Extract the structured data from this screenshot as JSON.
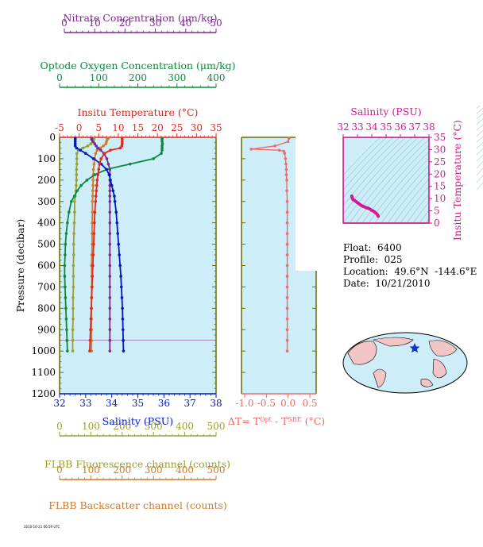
{
  "colors": {
    "nitrate": "#7a2a8a",
    "oxygen": "#0a8a3a",
    "temperature": "#e0281f",
    "salinity": "#0018c8",
    "fluorescence": "#9aa030",
    "backscatter": "#d27a2a",
    "delta": "#ef6a6a",
    "ts": "#d4198f",
    "plot_bg": "#cdeef8",
    "frame_olive": "#6b6b00"
  },
  "axes": {
    "nitrate": {
      "label": "Nitrate Concentration (μm/kg)",
      "ticks": [
        "0",
        "10",
        "20",
        "30",
        "40",
        "50"
      ],
      "range": [
        0,
        50
      ]
    },
    "oxygen": {
      "label": "Optode Oxygen Concentration (μm/kg)",
      "ticks": [
        "0",
        "100",
        "200",
        "300",
        "400"
      ],
      "range": [
        0,
        400
      ]
    },
    "temperature": {
      "label": "Insitu Temperature (°C)",
      "ticks": [
        "-5",
        "0",
        "5",
        "10",
        "15",
        "20",
        "25",
        "30",
        "35"
      ],
      "range": [
        -5,
        35
      ]
    },
    "salinity": {
      "label": "Salinity (PSU)",
      "ticks": [
        "32",
        "33",
        "34",
        "35",
        "36",
        "37",
        "38"
      ],
      "range": [
        32,
        38
      ]
    },
    "pressure": {
      "label": "Pressure (decibar)",
      "ticks": [
        "0",
        "100",
        "200",
        "300",
        "400",
        "500",
        "600",
        "700",
        "800",
        "900",
        "1000",
        "1100",
        "1200"
      ],
      "range": [
        0,
        1200
      ]
    },
    "delta": {
      "label_pre": "ΔT= T",
      "label_sup1": "Opt",
      "label_mid": " - T",
      "label_sup2": "SBE",
      "label_post": " (°C)",
      "ticks": [
        "-1.0",
        "-0.5",
        "0.0",
        "0.5"
      ],
      "range": [
        -1.0,
        0.5
      ]
    },
    "fluorescence": {
      "label": "FLBB Fluorescence channel (counts)",
      "ticks": [
        "0",
        "100",
        "200",
        "300",
        "400",
        "500"
      ],
      "range": [
        0,
        500
      ]
    },
    "backscatter": {
      "label": "FLBB Backscatter channel (counts)",
      "ticks": [
        "0",
        "100",
        "200",
        "300",
        "400",
        "500"
      ],
      "range": [
        0,
        500
      ]
    },
    "ts_salinity": {
      "label": "Salinity (PSU)",
      "ticks": [
        "32",
        "33",
        "34",
        "35",
        "36",
        "37",
        "38"
      ],
      "range": [
        32,
        38
      ]
    },
    "ts_temperature": {
      "label": "Insitu Temperature (°C)",
      "ticks": [
        "0",
        "5",
        "10",
        "15",
        "20",
        "25",
        "30",
        "35"
      ],
      "range": [
        0,
        35
      ]
    }
  },
  "info": {
    "float": "Float:  6400",
    "profile": "Profile:  025",
    "location": "Location:  49.6°N  -144.6°E",
    "date": "Date:  10/21/2010"
  },
  "footer": "2010-10-21 06:59 UTC",
  "chart_data": [
    {
      "type": "line",
      "panel": "main-profile",
      "pressure": [
        5,
        10,
        20,
        30,
        40,
        50,
        60,
        75,
        100,
        125,
        150,
        175,
        200,
        225,
        250,
        275,
        300,
        350,
        400,
        450,
        500,
        550,
        600,
        650,
        700,
        750,
        800,
        850,
        900,
        950,
        1000
      ],
      "series": [
        {
          "name": "Salinity (PSU)",
          "axis": "salinity",
          "values": [
            32.6,
            32.6,
            32.6,
            32.6,
            32.6,
            32.65,
            32.8,
            33.0,
            33.3,
            33.6,
            33.8,
            33.9,
            33.95,
            34.0,
            34.05,
            34.1,
            34.12,
            34.17,
            34.2,
            34.23,
            34.26,
            34.29,
            34.32,
            34.35,
            34.37,
            34.39,
            34.41,
            34.42,
            34.43,
            34.44,
            34.45
          ]
        },
        {
          "name": "Insitu Temperature (°C)",
          "axis": "temperature",
          "values": [
            11.0,
            11.0,
            11.0,
            11.0,
            10.9,
            10.5,
            8.0,
            6.5,
            5.6,
            5.2,
            5.0,
            4.8,
            4.6,
            4.5,
            4.4,
            4.3,
            4.2,
            4.0,
            3.9,
            3.8,
            3.7,
            3.6,
            3.5,
            3.4,
            3.3,
            3.2,
            3.1,
            3.0,
            2.9,
            2.8,
            2.7
          ]
        },
        {
          "name": "Optode Oxygen Concentration (μm/kg)",
          "axis": "oxygen",
          "values": [
            262,
            262,
            262,
            263,
            262,
            262,
            262,
            260,
            240,
            180,
            120,
            90,
            70,
            55,
            45,
            38,
            30,
            24,
            20,
            17,
            15,
            14,
            13,
            13,
            14,
            15,
            16,
            17,
            18,
            19,
            20
          ]
        },
        {
          "name": "Nitrate Concentration (μm/kg)",
          "axis": "nitrate",
          "values": [
            9.0,
            9.0,
            9.5,
            10.0,
            10.5,
            11.0,
            12.0,
            13.0,
            14.0,
            14.5,
            15.0,
            15.0,
            15.0,
            15.0,
            15.0,
            15.0,
            15.0,
            15.0,
            15.0,
            15.0,
            15.0,
            15.0,
            15.0,
            15.0,
            15.0,
            15.0,
            15.0,
            15.0,
            15.0,
            15.0,
            15.0
          ]
        },
        {
          "name": "FLBB Fluorescence channel (counts)",
          "axis": "fluorescence",
          "values": [
            110,
            108,
            106,
            100,
            90,
            75,
            60,
            55,
            55,
            55,
            54,
            54,
            54,
            53,
            52,
            50,
            48,
            48,
            47,
            46,
            45,
            45,
            44,
            44,
            44,
            43,
            43,
            43,
            42,
            42,
            42
          ]
        },
        {
          "name": "FLBB Backscatter channel (counts)",
          "axis": "backscatter",
          "values": [
            155,
            152,
            150,
            148,
            140,
            130,
            120,
            115,
            112,
            110,
            108,
            108,
            107,
            107,
            106,
            106,
            105,
            105,
            104,
            104,
            104,
            103,
            102,
            103,
            103,
            102,
            102,
            102,
            102,
            102,
            102
          ]
        }
      ]
    },
    {
      "type": "line",
      "panel": "delta-temperature",
      "xlabel": "ΔT= T^Opt - T^SBE (°C)",
      "ylim": [
        0,
        1200
      ],
      "xlim": [
        -1.0,
        0.5
      ],
      "pressure": [
        5,
        20,
        40,
        55,
        60,
        65,
        75,
        100,
        125,
        150,
        175,
        200,
        250,
        300,
        350,
        400,
        450,
        500,
        550,
        600,
        650,
        700,
        750,
        800,
        850,
        900,
        950,
        1000
      ],
      "values": [
        0.02,
        0.0,
        -0.3,
        -0.85,
        -0.2,
        -0.1,
        -0.08,
        -0.06,
        -0.05,
        -0.04,
        -0.04,
        -0.03,
        -0.03,
        -0.02,
        -0.02,
        -0.02,
        -0.02,
        -0.02,
        -0.02,
        -0.02,
        -0.02,
        -0.02,
        -0.02,
        -0.02,
        -0.02,
        -0.02,
        -0.02,
        -0.02
      ]
    },
    {
      "type": "scatter",
      "panel": "t-s-diagram",
      "xlabel": "Salinity (PSU)",
      "ylabel": "Insitu Temperature (°C)",
      "xlim": [
        32,
        38
      ],
      "ylim": [
        0,
        35
      ],
      "x": [
        32.6,
        32.62,
        32.65,
        32.7,
        32.8,
        32.9,
        33.0,
        33.1,
        33.2,
        33.3,
        33.4,
        33.5,
        33.6,
        33.7,
        33.8,
        33.9,
        34.0,
        34.1,
        34.2,
        34.3,
        34.4,
        34.45
      ],
      "y": [
        11.0,
        10.6,
        10.0,
        9.6,
        9.2,
        8.8,
        8.3,
        7.9,
        7.5,
        7.1,
        6.8,
        6.6,
        6.3,
        6.1,
        5.9,
        5.6,
        5.2,
        4.9,
        4.5,
        4.0,
        3.4,
        2.8
      ]
    }
  ]
}
